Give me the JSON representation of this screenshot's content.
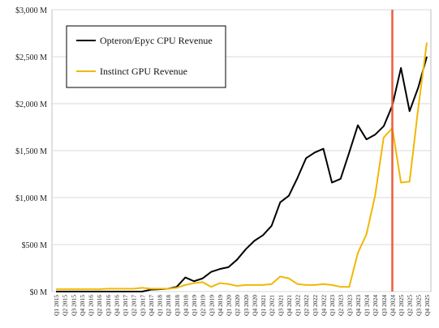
{
  "chart_data": {
    "type": "line",
    "title": "",
    "xlabel": "",
    "ylabel": "",
    "ylim": [
      0,
      3000
    ],
    "y_ticks": [
      "$0 M",
      "$500 M",
      "$1,000 M",
      "$1,500 M",
      "$2,000 M",
      "$2,500 M",
      "$3,000 M"
    ],
    "y_tick_values": [
      0,
      500,
      1000,
      1500,
      2000,
      2500,
      3000
    ],
    "grid": "horizontal",
    "legend_position": "top-left",
    "categories": [
      "Q1 2015",
      "Q2 2015",
      "Q3 2015",
      "Q4 2015",
      "Q1 2016",
      "Q2 2016",
      "Q3 2016",
      "Q4 2016",
      "Q1 2017",
      "Q2 2017",
      "Q3 2017",
      "Q4 2017",
      "Q1 2018",
      "Q2 2018",
      "Q3 2018",
      "Q4 2018",
      "Q1 2019",
      "Q2 2019",
      "Q3 2019",
      "Q4 2019",
      "Q1 2020",
      "Q2 2020",
      "Q3 2020",
      "Q4 2020",
      "Q1 2021",
      "Q2 2021",
      "Q3 2021",
      "Q4 2021",
      "Q1 2022",
      "Q2 2022",
      "Q3 2022",
      "Q4 2022",
      "Q1 2023",
      "Q2 2023",
      "Q3 2023",
      "Q4 2023",
      "Q1 2024",
      "Q2 2024",
      "Q3 2024",
      "Q4 2024",
      "Q1 2025",
      "Q2 2025",
      "Q3 2025",
      "Q4 2025"
    ],
    "series": [
      {
        "name": "Opteron/Epyc CPU Revenue",
        "color": "#000000",
        "values": [
          0,
          0,
          0,
          0,
          0,
          0,
          0,
          0,
          0,
          0,
          0,
          20,
          25,
          30,
          50,
          150,
          110,
          140,
          210,
          240,
          260,
          340,
          450,
          540,
          600,
          700,
          950,
          1020,
          1210,
          1420,
          1480,
          1520,
          1160,
          1200,
          1480,
          1770,
          1620,
          1670,
          1760,
          1980,
          2380,
          1920,
          2170,
          2500
        ]
      },
      {
        "name": "Instinct GPU Revenue",
        "color": "#f2b705",
        "values": [
          25,
          25,
          25,
          25,
          25,
          25,
          30,
          30,
          30,
          30,
          40,
          30,
          30,
          30,
          40,
          70,
          90,
          100,
          50,
          90,
          80,
          60,
          70,
          70,
          70,
          80,
          160,
          140,
          80,
          70,
          70,
          80,
          70,
          50,
          50,
          410,
          610,
          1020,
          1640,
          1740,
          1160,
          1170,
          1950,
          2650
        ]
      }
    ],
    "annotations": [
      {
        "type": "vertical-line",
        "x": "Q4 2024",
        "color": "#e8603c"
      }
    ]
  }
}
